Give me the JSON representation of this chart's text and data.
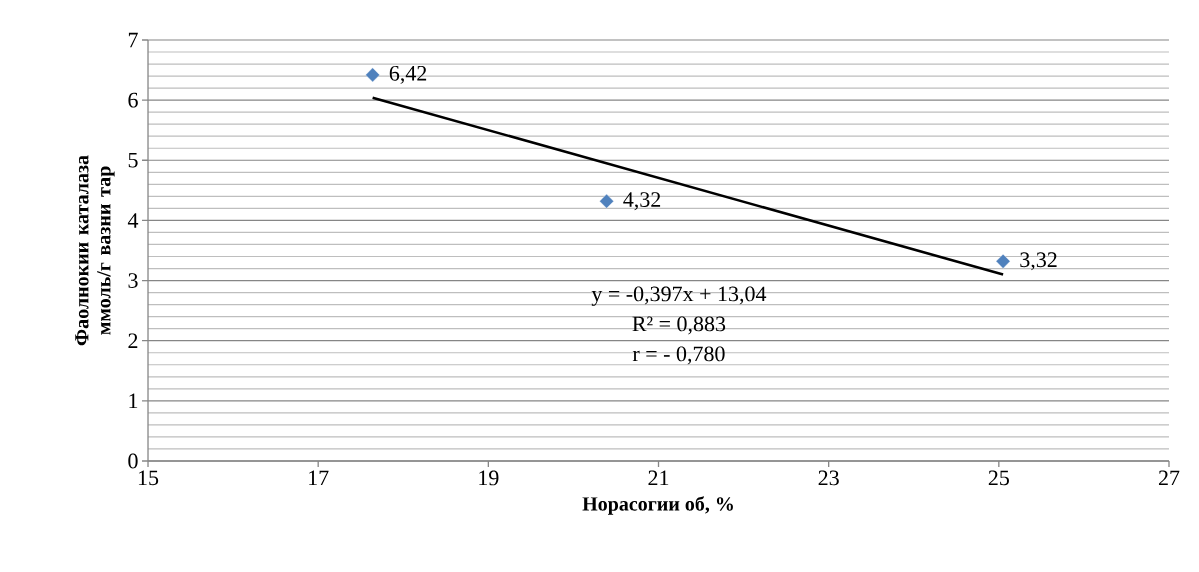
{
  "chart_data": {
    "type": "scatter",
    "xlabel": "Норасогии об, %",
    "ylabel": "Фаолнокии каталаза ммоль/г вазни тар",
    "xlim": [
      15,
      27
    ],
    "xticks": [
      15,
      17,
      19,
      21,
      23,
      25,
      27
    ],
    "ylim": [
      0,
      7
    ],
    "yticks": [
      0,
      1,
      2,
      3,
      4,
      5,
      6,
      7
    ],
    "grid": "y",
    "series": [
      {
        "color": "#4f81bd",
        "marker": "diamond",
        "x": [
          17.64,
          20.39,
          25.05
        ],
        "values": [
          6.42,
          4.32,
          3.32
        ],
        "value_labels": [
          "6,42",
          "4,32",
          "3,32"
        ]
      },
      {
        "type": "line",
        "color": "#000000",
        "line_style": "solid",
        "marker": "none",
        "x": [
          17.64,
          25.05
        ],
        "values": [
          6.04,
          3.1
        ]
      }
    ],
    "annotations": [
      "y = -0,397x + 13,04",
      "R² = 0,883",
      "r = - 0,780"
    ]
  }
}
